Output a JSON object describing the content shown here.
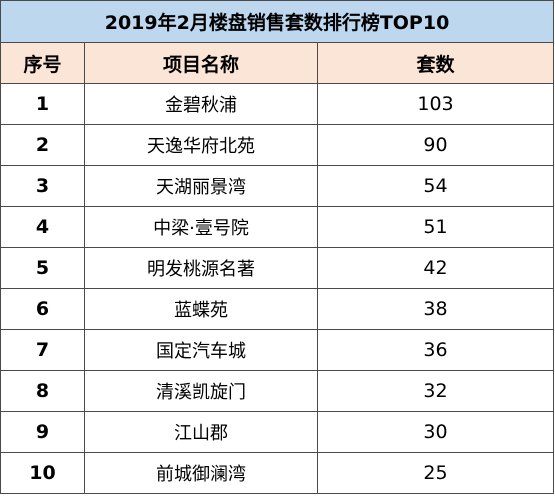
{
  "title": "2019年2月楼盘销售套数排行榜TOP10",
  "headers": {
    "rank": "序号",
    "project": "项目名称",
    "sets": "套数"
  },
  "rows": [
    {
      "rank": "1",
      "project": "金碧秋浦",
      "sets": "103"
    },
    {
      "rank": "2",
      "project": "天逸华府北苑",
      "sets": "90"
    },
    {
      "rank": "3",
      "project": "天湖丽景湾",
      "sets": "54"
    },
    {
      "rank": "4",
      "project": "中梁·壹号院",
      "sets": "51"
    },
    {
      "rank": "5",
      "project": "明发桃源名著",
      "sets": "42"
    },
    {
      "rank": "6",
      "project": "蓝蝶苑",
      "sets": "38"
    },
    {
      "rank": "7",
      "project": "国定汽车城",
      "sets": "36"
    },
    {
      "rank": "8",
      "project": "清溪凯旋门",
      "sets": "32"
    },
    {
      "rank": "9",
      "project": "江山郡",
      "sets": "30"
    },
    {
      "rank": "10",
      "project": "前城御澜湾",
      "sets": "25"
    }
  ],
  "colors": {
    "title_bg": "#bdd7ee",
    "header_bg": "#fbe5d6",
    "border": "#4a4a4a"
  }
}
